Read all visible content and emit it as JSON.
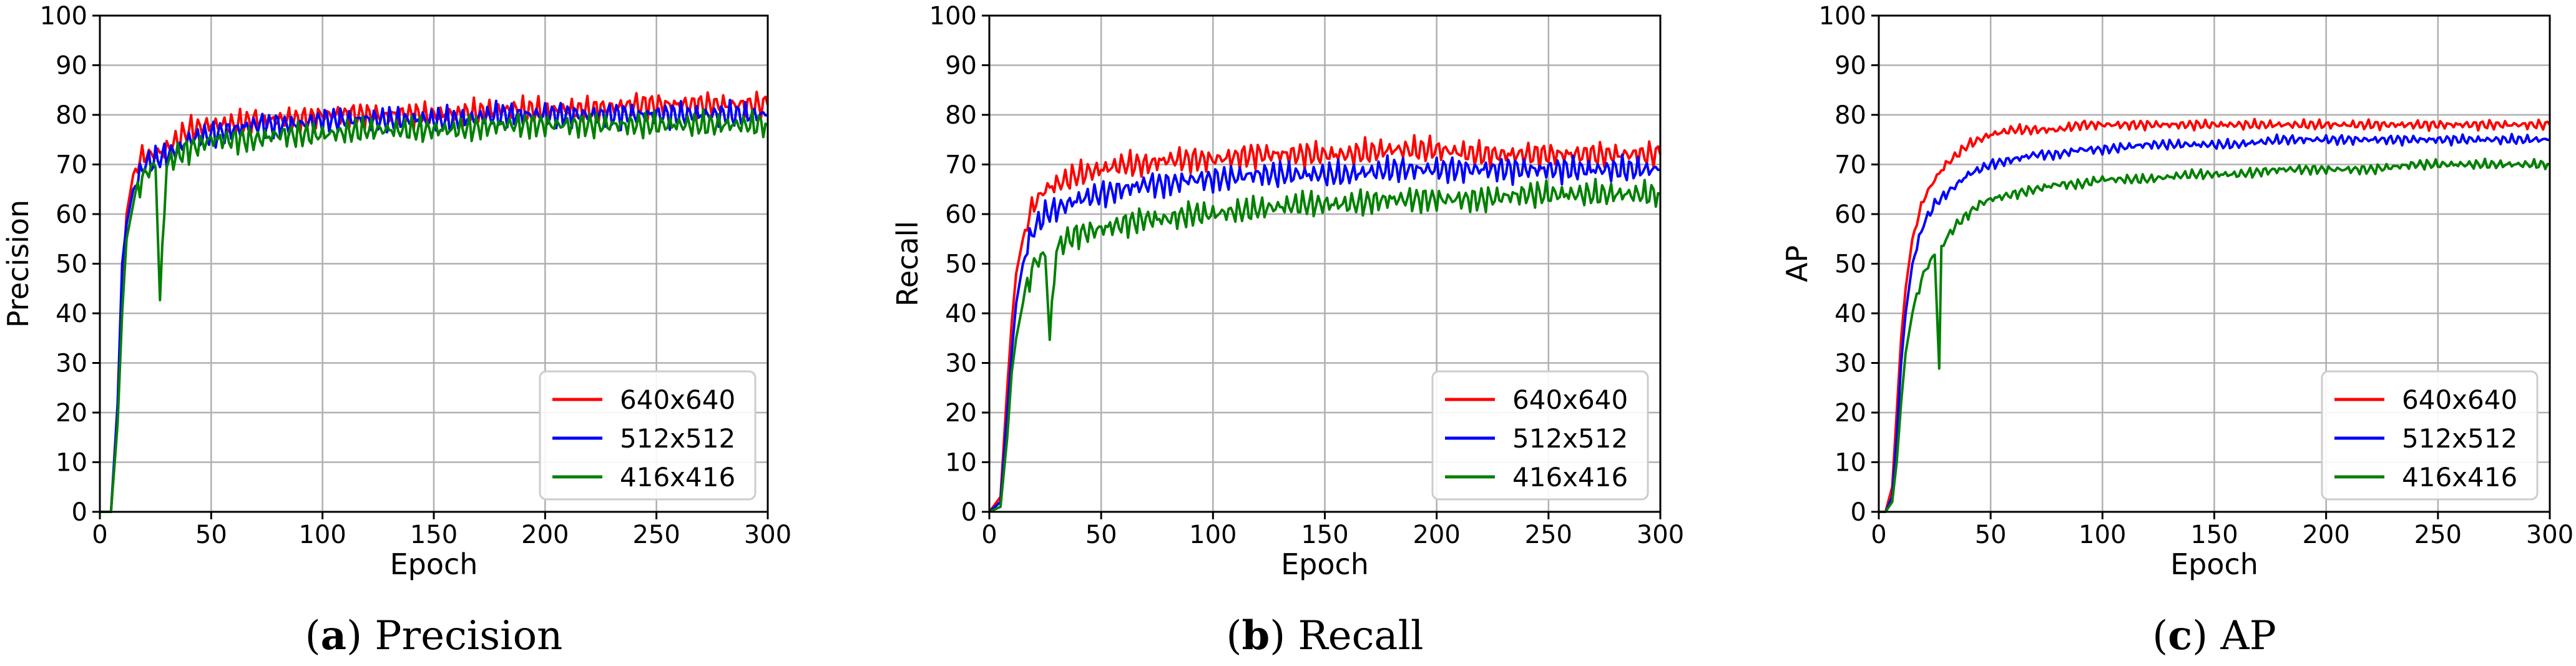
{
  "chart_data": [
    {
      "type": "line",
      "caption_letter": "(a)",
      "caption_label": "Precision",
      "xlabel": "Epoch",
      "ylabel": "Precision",
      "xlim": [
        0,
        300
      ],
      "ylim": [
        0,
        100
      ],
      "xticks": [
        0,
        50,
        100,
        150,
        200,
        250,
        300
      ],
      "yticks": [
        0,
        10,
        20,
        30,
        40,
        50,
        60,
        70,
        80,
        90,
        100
      ],
      "grid": true,
      "legend_position": "bottom-right",
      "series": [
        {
          "name": "640x640",
          "color": "#ff0000",
          "x": [
            0,
            5,
            8,
            10,
            12,
            15,
            18,
            20,
            25,
            30,
            35,
            40,
            50,
            60,
            70,
            80,
            90,
            100,
            120,
            140,
            160,
            180,
            200,
            220,
            240,
            260,
            280,
            300
          ],
          "y": [
            0,
            0,
            20,
            45,
            60,
            68,
            71,
            72,
            72,
            73,
            75,
            77,
            78,
            78,
            79,
            79,
            79,
            80,
            80,
            80,
            80,
            81,
            81,
            81,
            82,
            82,
            82,
            82
          ]
        },
        {
          "name": "512x512",
          "color": "#0000ff",
          "x": [
            0,
            5,
            8,
            10,
            12,
            15,
            18,
            20,
            25,
            30,
            35,
            40,
            50,
            60,
            70,
            80,
            90,
            100,
            120,
            140,
            160,
            180,
            200,
            220,
            240,
            260,
            280,
            300
          ],
          "y": [
            0,
            0,
            22,
            50,
            58,
            65,
            68,
            70,
            71,
            72,
            73,
            75,
            76,
            77,
            78,
            78,
            78,
            79,
            79,
            79,
            79,
            80,
            80,
            80,
            80,
            80,
            80,
            80
          ]
        },
        {
          "name": "416x416",
          "color": "#008000",
          "x": [
            0,
            5,
            8,
            10,
            12,
            15,
            18,
            20,
            25,
            27,
            30,
            35,
            40,
            50,
            60,
            70,
            80,
            90,
            100,
            120,
            140,
            160,
            180,
            200,
            220,
            240,
            260,
            280,
            300
          ],
          "y": [
            0,
            0,
            18,
            40,
            55,
            62,
            66,
            68,
            70,
            43,
            70,
            72,
            73,
            75,
            75,
            75,
            76,
            76,
            76,
            77,
            77,
            77,
            78,
            78,
            78,
            78,
            78,
            78,
            78
          ]
        }
      ]
    },
    {
      "type": "line",
      "caption_letter": "(b)",
      "caption_label": "Recall",
      "xlabel": "Epoch",
      "ylabel": "Recall",
      "xlim": [
        0,
        300
      ],
      "ylim": [
        0,
        100
      ],
      "xticks": [
        0,
        50,
        100,
        150,
        200,
        250,
        300
      ],
      "yticks": [
        0,
        10,
        20,
        30,
        40,
        50,
        60,
        70,
        80,
        90,
        100
      ],
      "grid": true,
      "legend_position": "bottom-right",
      "series": [
        {
          "name": "640x640",
          "color": "#ff0000",
          "x": [
            0,
            5,
            8,
            10,
            12,
            15,
            18,
            20,
            25,
            30,
            35,
            40,
            50,
            60,
            70,
            80,
            90,
            100,
            120,
            140,
            160,
            180,
            200,
            220,
            240,
            260,
            280,
            300
          ],
          "y": [
            0,
            3,
            25,
            38,
            48,
            55,
            60,
            62,
            65,
            66,
            67,
            68,
            69,
            70,
            70,
            71,
            71,
            71,
            72,
            72,
            72,
            73,
            73,
            72,
            72,
            72,
            72,
            72
          ]
        },
        {
          "name": "512x512",
          "color": "#0000ff",
          "x": [
            0,
            5,
            8,
            10,
            12,
            15,
            18,
            20,
            25,
            30,
            35,
            40,
            50,
            60,
            70,
            80,
            90,
            100,
            120,
            140,
            160,
            180,
            200,
            220,
            240,
            260,
            280,
            300
          ],
          "y": [
            0,
            2,
            20,
            32,
            42,
            50,
            55,
            57,
            60,
            61,
            62,
            63,
            64,
            65,
            66,
            66,
            67,
            67,
            68,
            68,
            68,
            69,
            69,
            69,
            69,
            69,
            69,
            69
          ]
        },
        {
          "name": "416x416",
          "color": "#008000",
          "x": [
            0,
            5,
            8,
            10,
            12,
            15,
            18,
            20,
            25,
            27,
            30,
            35,
            40,
            50,
            60,
            70,
            80,
            90,
            100,
            120,
            140,
            160,
            180,
            200,
            220,
            240,
            260,
            280,
            300
          ],
          "y": [
            0,
            1,
            15,
            28,
            35,
            42,
            47,
            50,
            52,
            35,
            53,
            55,
            56,
            57,
            58,
            59,
            59,
            60,
            60,
            61,
            62,
            62,
            63,
            63,
            63,
            64,
            64,
            64,
            64
          ]
        }
      ]
    },
    {
      "type": "line",
      "caption_letter": "(c)",
      "caption_label": "AP",
      "xlabel": "Epoch",
      "ylabel": "AP",
      "xlim": [
        0,
        300
      ],
      "ylim": [
        0,
        100
      ],
      "xticks": [
        0,
        50,
        100,
        150,
        200,
        250,
        300
      ],
      "yticks": [
        0,
        10,
        20,
        30,
        40,
        50,
        60,
        70,
        80,
        90,
        100
      ],
      "grid": true,
      "legend_position": "bottom-right",
      "series": [
        {
          "name": "640x640",
          "color": "#ff0000",
          "x": [
            0,
            3,
            6,
            8,
            10,
            12,
            15,
            18,
            20,
            25,
            30,
            35,
            40,
            45,
            50,
            60,
            70,
            80,
            90,
            100,
            120,
            140,
            160,
            180,
            200,
            220,
            240,
            260,
            280,
            300
          ],
          "y": [
            0,
            0,
            5,
            20,
            35,
            45,
            55,
            60,
            63,
            67,
            70,
            72,
            74,
            75,
            76,
            77,
            77,
            77,
            78,
            78,
            78,
            78,
            78,
            78,
            78,
            78,
            78,
            78,
            78,
            78
          ]
        },
        {
          "name": "512x512",
          "color": "#0000ff",
          "x": [
            0,
            3,
            6,
            8,
            10,
            12,
            15,
            18,
            20,
            25,
            30,
            35,
            40,
            45,
            50,
            60,
            70,
            80,
            90,
            100,
            120,
            140,
            160,
            180,
            200,
            220,
            240,
            260,
            280,
            300
          ],
          "y": [
            0,
            0,
            3,
            15,
            30,
            40,
            50,
            55,
            58,
            62,
            64,
            66,
            68,
            69,
            70,
            71,
            72,
            72,
            73,
            73,
            74,
            74,
            74,
            75,
            75,
            75,
            75,
            75,
            75,
            75
          ]
        },
        {
          "name": "416x416",
          "color": "#008000",
          "x": [
            0,
            3,
            6,
            8,
            10,
            12,
            15,
            18,
            20,
            25,
            27,
            28,
            30,
            35,
            40,
            45,
            50,
            60,
            70,
            80,
            90,
            100,
            120,
            140,
            160,
            180,
            200,
            220,
            240,
            260,
            280,
            300
          ],
          "y": [
            0,
            0,
            2,
            10,
            22,
            32,
            40,
            45,
            48,
            52,
            29,
            53,
            55,
            58,
            60,
            62,
            63,
            64,
            65,
            66,
            66,
            67,
            67,
            68,
            68,
            69,
            69,
            69,
            70,
            70,
            70,
            70
          ]
        }
      ]
    }
  ]
}
